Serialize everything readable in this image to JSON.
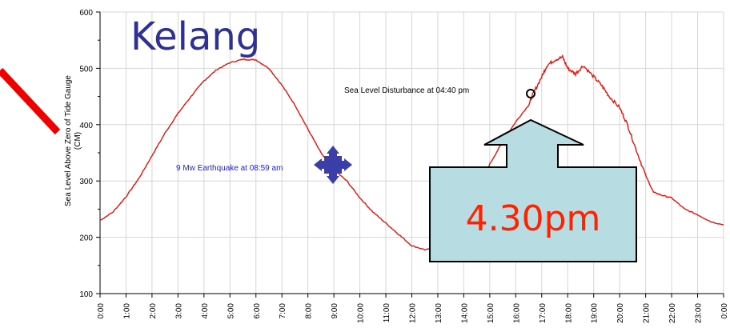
{
  "colors": {
    "series": "#e8120c",
    "title": "#2e3192",
    "earthquake_text": "#2222dd",
    "marker": "#3b3da8",
    "callout_fill": "#b7dde3",
    "callout_text": "#ff2200",
    "slash": "#ee0000",
    "grid": "#d6d6d6"
  },
  "chart_data": {
    "type": "line",
    "title": "Kelang",
    "ylabel_line1": "Sea Level Above Zero of Tide Gauge",
    "ylabel_line2": "(CM)",
    "xlabel": "",
    "ylim": [
      100,
      600
    ],
    "yticks": [
      100,
      200,
      300,
      400,
      500,
      600
    ],
    "xticks": [
      "0:00",
      "1:00",
      "2:00",
      "3:00",
      "4:00",
      "5:00",
      "6:00",
      "7:00",
      "8:00",
      "9:00",
      "10:00",
      "11:00",
      "12:00",
      "13:00",
      "14:00",
      "15:00",
      "16:00",
      "17:00",
      "18:00",
      "19:00",
      "20:00",
      "21:00",
      "22:00",
      "23:00",
      "0:00"
    ],
    "grid": true,
    "series": [
      {
        "x": [
          0,
          0.5,
          1,
          1.5,
          2,
          2.5,
          3,
          3.5,
          4,
          4.5,
          5,
          5.5,
          6,
          6.5,
          7,
          7.5,
          8,
          8.5,
          9,
          9.5,
          10,
          10.5,
          11,
          11.5,
          12,
          12.5,
          13,
          13.5,
          14,
          14.5,
          15,
          15.5,
          16,
          16.5,
          16.67,
          17,
          17.2,
          17.5,
          17.8,
          18,
          18.3,
          18.6,
          19,
          19.3,
          19.6,
          20,
          20.3,
          20.6,
          21,
          21.3,
          21.6,
          22,
          22.5,
          23,
          23.5,
          24
        ],
        "y": [
          230,
          245,
          272,
          305,
          345,
          385,
          420,
          450,
          478,
          498,
          510,
          516,
          515,
          500,
          470,
          435,
          392,
          350,
          320,
          300,
          270,
          245,
          225,
          205,
          185,
          178,
          180,
          190,
          215,
          270,
          330,
          370,
          405,
          435,
          455,
          485,
          505,
          515,
          520,
          500,
          490,
          505,
          485,
          470,
          450,
          430,
          400,
          360,
          310,
          280,
          275,
          270,
          250,
          240,
          228,
          222
        ]
      }
    ],
    "annotations": {
      "earthquake": "9 Mw Earthquake at 08:59 am",
      "disturbance": "Sea Level Disturbance at 04:40 pm",
      "callout": "4.30pm"
    }
  }
}
